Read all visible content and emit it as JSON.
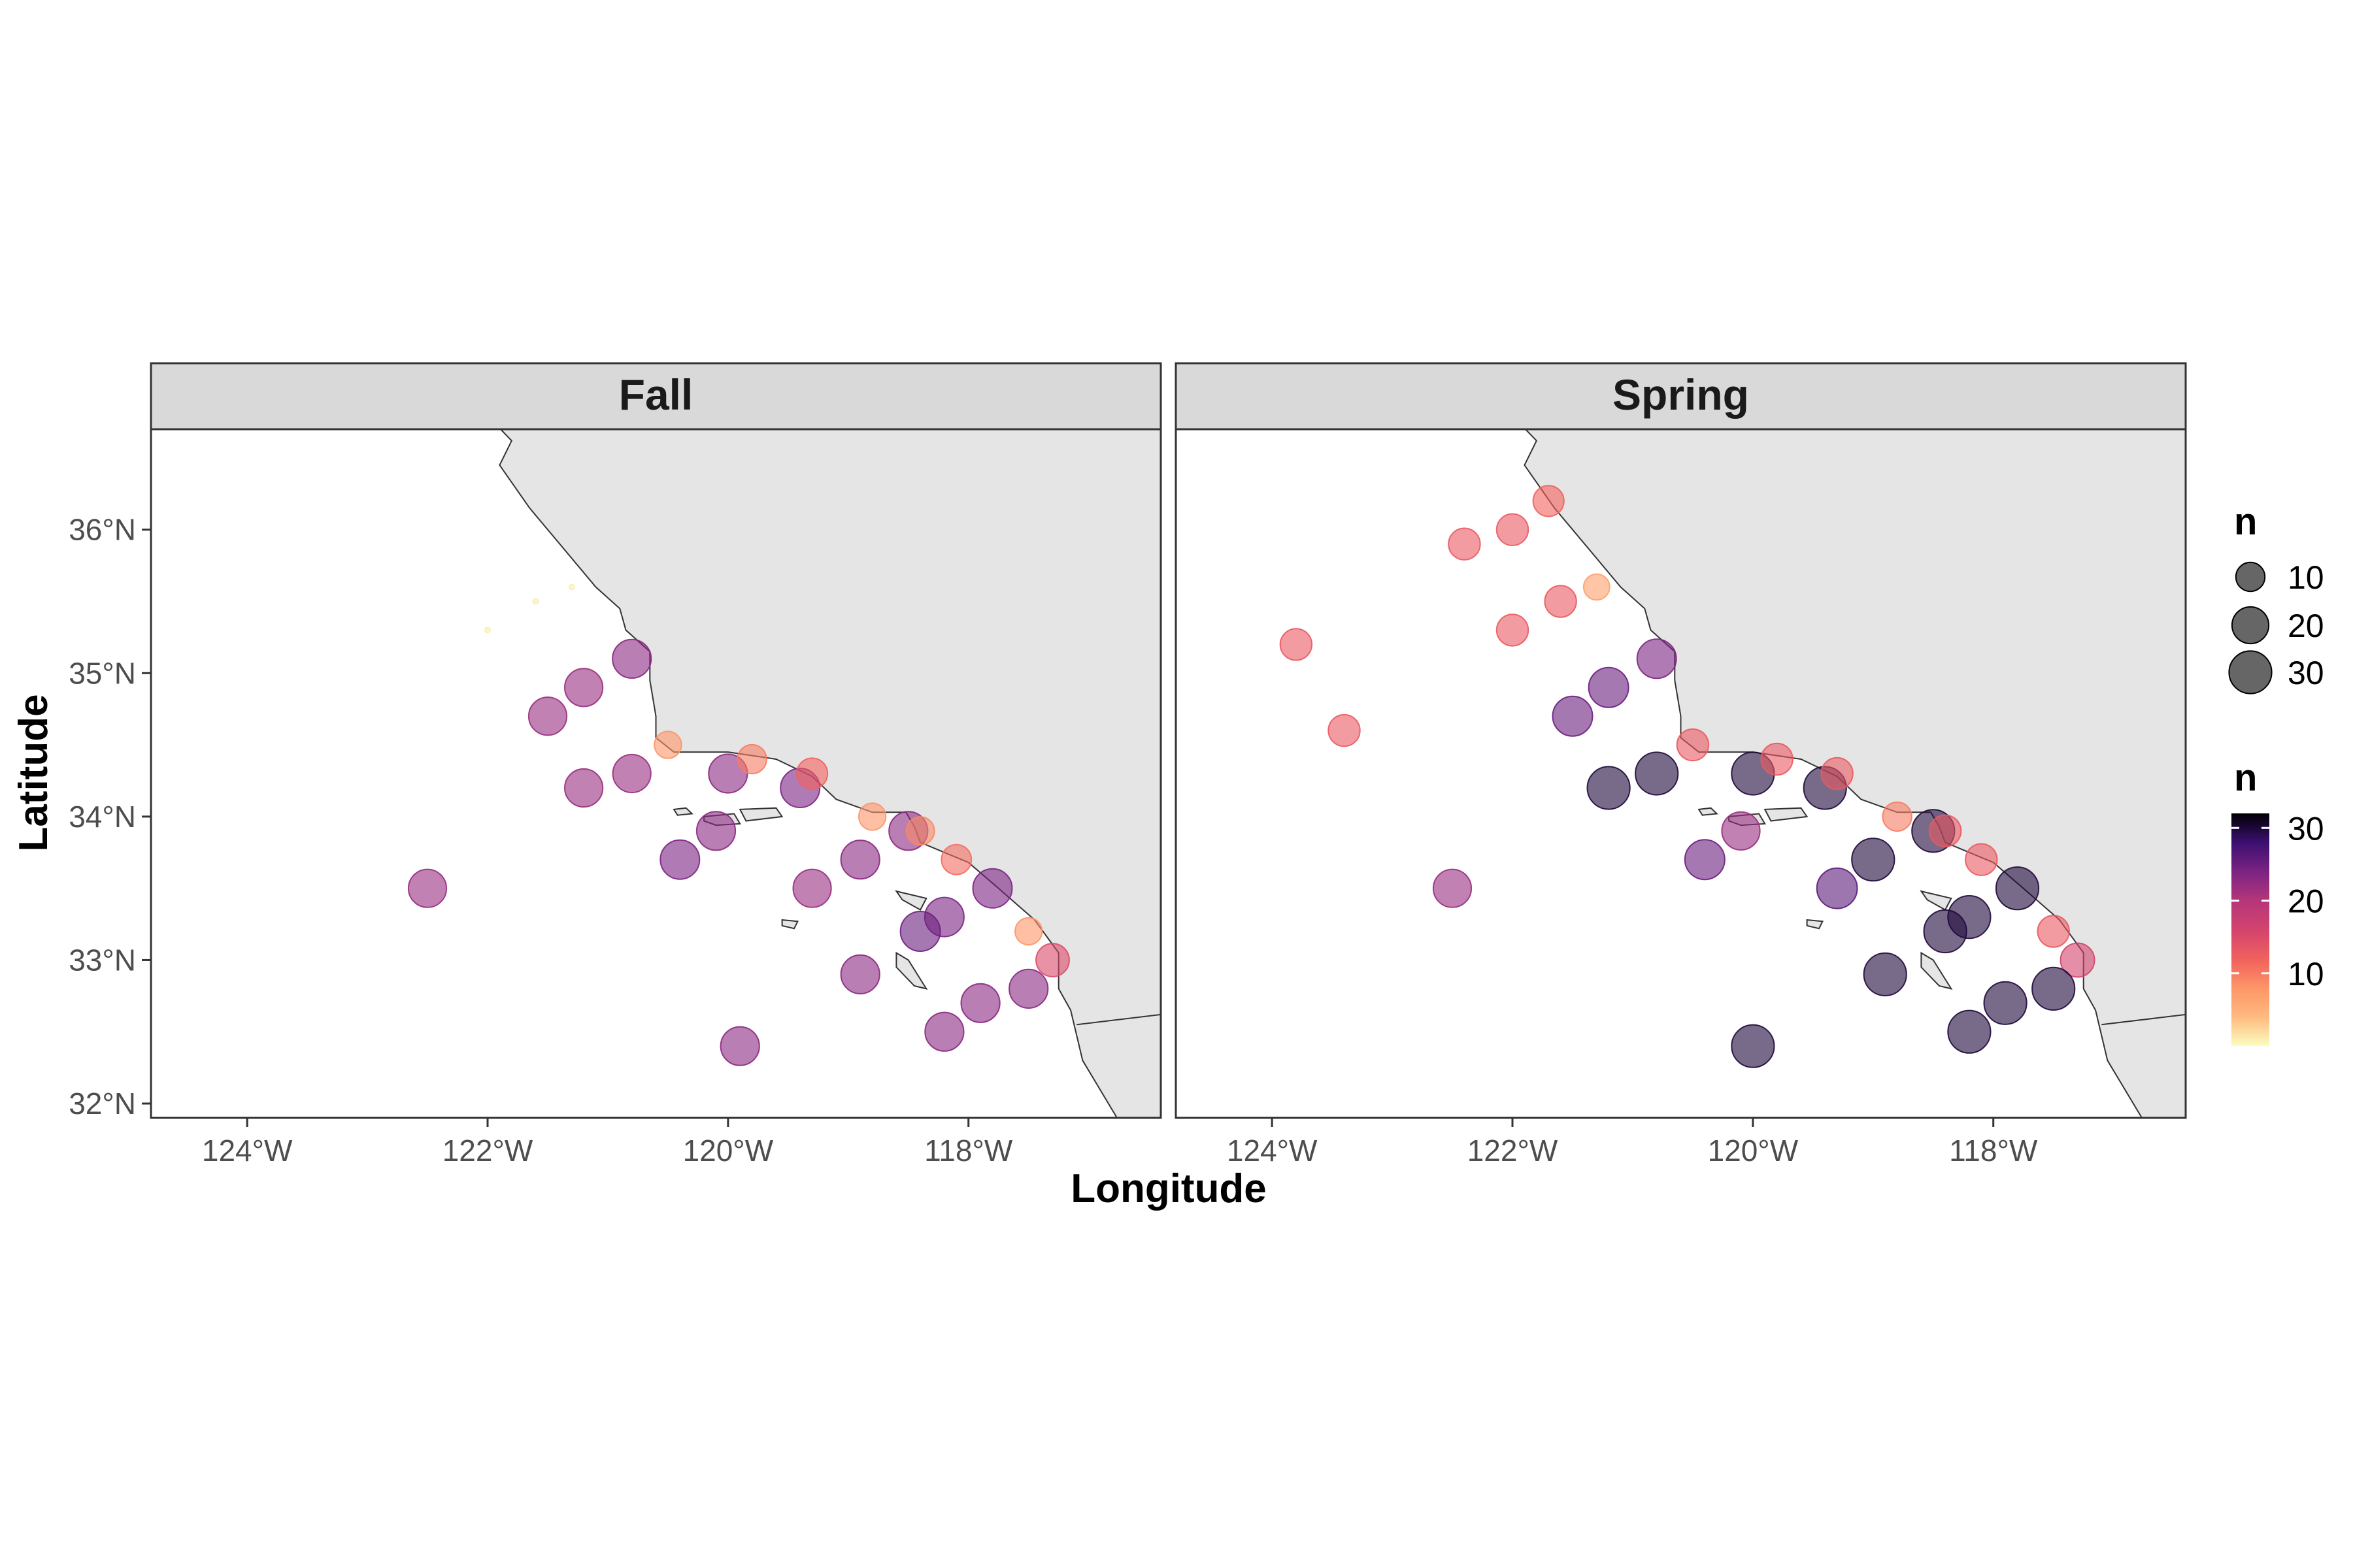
{
  "chart_data": {
    "type": "scatter",
    "xlabel": "Longitude",
    "ylabel": "Latitude",
    "xlim": [
      -124.8,
      -116.4
    ],
    "ylim": [
      31.9,
      36.7
    ],
    "x_ticks": [
      {
        "value": -124,
        "label": "124°W"
      },
      {
        "value": -122,
        "label": "122°W"
      },
      {
        "value": -120,
        "label": "120°W"
      },
      {
        "value": -118,
        "label": "118°W"
      }
    ],
    "y_ticks": [
      {
        "value": 36,
        "label": "36°N"
      },
      {
        "value": 35,
        "label": "35°N"
      },
      {
        "value": 34,
        "label": "34°N"
      },
      {
        "value": 33,
        "label": "33°N"
      },
      {
        "value": 32,
        "label": "32°N"
      }
    ],
    "land_color": "#e5e5e5",
    "point_alpha": 0.6,
    "color_scale": {
      "name": "magma (reversed)",
      "min": 0,
      "max": 32
    },
    "panels": [
      {
        "name": "Fall",
        "points": [
          {
            "lon": -122.5,
            "lat": 33.5,
            "n": 22
          },
          {
            "lon": -121.5,
            "lat": 34.7,
            "n": 22
          },
          {
            "lon": -121.2,
            "lat": 34.9,
            "n": 22
          },
          {
            "lon": -120.8,
            "lat": 35.1,
            "n": 23
          },
          {
            "lon": -121.2,
            "lat": 34.2,
            "n": 22
          },
          {
            "lon": -120.8,
            "lat": 34.3,
            "n": 22
          },
          {
            "lon": -120.5,
            "lat": 34.5,
            "n": 8
          },
          {
            "lon": -120.0,
            "lat": 34.3,
            "n": 23
          },
          {
            "lon": -119.8,
            "lat": 34.4,
            "n": 10
          },
          {
            "lon": -119.4,
            "lat": 34.2,
            "n": 24
          },
          {
            "lon": -119.3,
            "lat": 34.3,
            "n": 12
          },
          {
            "lon": -120.1,
            "lat": 33.9,
            "n": 23
          },
          {
            "lon": -120.4,
            "lat": 33.7,
            "n": 24
          },
          {
            "lon": -119.3,
            "lat": 33.5,
            "n": 22
          },
          {
            "lon": -118.9,
            "lat": 33.7,
            "n": 23
          },
          {
            "lon": -118.8,
            "lat": 34.0,
            "n": 8
          },
          {
            "lon": -118.5,
            "lat": 33.9,
            "n": 23
          },
          {
            "lon": -118.4,
            "lat": 33.9,
            "n": 9
          },
          {
            "lon": -118.1,
            "lat": 33.7,
            "n": 11
          },
          {
            "lon": -117.8,
            "lat": 33.5,
            "n": 24
          },
          {
            "lon": -118.2,
            "lat": 33.3,
            "n": 24
          },
          {
            "lon": -118.4,
            "lat": 33.2,
            "n": 25
          },
          {
            "lon": -117.5,
            "lat": 33.2,
            "n": 8
          },
          {
            "lon": -117.3,
            "lat": 33.0,
            "n": 15
          },
          {
            "lon": -118.9,
            "lat": 32.9,
            "n": 23
          },
          {
            "lon": -117.9,
            "lat": 32.7,
            "n": 23
          },
          {
            "lon": -117.5,
            "lat": 32.8,
            "n": 23
          },
          {
            "lon": -118.2,
            "lat": 32.5,
            "n": 23
          },
          {
            "lon": -119.9,
            "lat": 32.4,
            "n": 23
          },
          {
            "lon": -122.0,
            "lat": 35.3,
            "n": 1
          },
          {
            "lon": -121.6,
            "lat": 35.5,
            "n": 1
          },
          {
            "lon": -121.3,
            "lat": 35.6,
            "n": 1
          }
        ]
      },
      {
        "name": "Spring",
        "points": [
          {
            "lon": -123.8,
            "lat": 35.2,
            "n": 13
          },
          {
            "lon": -123.4,
            "lat": 34.6,
            "n": 13
          },
          {
            "lon": -122.4,
            "lat": 35.9,
            "n": 13
          },
          {
            "lon": -122.0,
            "lat": 36.0,
            "n": 13
          },
          {
            "lon": -121.7,
            "lat": 36.2,
            "n": 12
          },
          {
            "lon": -122.0,
            "lat": 35.3,
            "n": 13
          },
          {
            "lon": -121.6,
            "lat": 35.5,
            "n": 13
          },
          {
            "lon": -121.3,
            "lat": 35.6,
            "n": 7
          },
          {
            "lon": -120.8,
            "lat": 35.1,
            "n": 24
          },
          {
            "lon": -121.2,
            "lat": 34.9,
            "n": 25
          },
          {
            "lon": -121.5,
            "lat": 34.7,
            "n": 25
          },
          {
            "lon": -121.2,
            "lat": 34.2,
            "n": 30
          },
          {
            "lon": -120.8,
            "lat": 34.3,
            "n": 30
          },
          {
            "lon": -120.5,
            "lat": 34.5,
            "n": 13
          },
          {
            "lon": -120.0,
            "lat": 34.3,
            "n": 30
          },
          {
            "lon": -119.8,
            "lat": 34.4,
            "n": 13
          },
          {
            "lon": -119.4,
            "lat": 34.2,
            "n": 30
          },
          {
            "lon": -119.3,
            "lat": 34.3,
            "n": 13
          },
          {
            "lon": -120.1,
            "lat": 33.9,
            "n": 22
          },
          {
            "lon": -120.4,
            "lat": 33.7,
            "n": 25
          },
          {
            "lon": -122.5,
            "lat": 33.5,
            "n": 22
          },
          {
            "lon": -119.0,
            "lat": 33.7,
            "n": 30
          },
          {
            "lon": -119.3,
            "lat": 33.5,
            "n": 26
          },
          {
            "lon": -118.8,
            "lat": 34.0,
            "n": 10
          },
          {
            "lon": -118.5,
            "lat": 33.9,
            "n": 30
          },
          {
            "lon": -118.4,
            "lat": 33.9,
            "n": 13
          },
          {
            "lon": -118.1,
            "lat": 33.7,
            "n": 13
          },
          {
            "lon": -117.8,
            "lat": 33.5,
            "n": 30
          },
          {
            "lon": -118.2,
            "lat": 33.3,
            "n": 30
          },
          {
            "lon": -118.4,
            "lat": 33.2,
            "n": 30
          },
          {
            "lon": -117.5,
            "lat": 33.2,
            "n": 13
          },
          {
            "lon": -117.3,
            "lat": 33.0,
            "n": 16
          },
          {
            "lon": -118.9,
            "lat": 32.9,
            "n": 30
          },
          {
            "lon": -117.9,
            "lat": 32.7,
            "n": 30
          },
          {
            "lon": -117.5,
            "lat": 32.8,
            "n": 30
          },
          {
            "lon": -118.2,
            "lat": 32.5,
            "n": 30
          },
          {
            "lon": -120.0,
            "lat": 32.4,
            "n": 30
          }
        ]
      }
    ],
    "legend": {
      "placement": "right",
      "size_title": "n",
      "size_entries": [
        {
          "value": 10,
          "label": "10"
        },
        {
          "value": 20,
          "label": "20"
        },
        {
          "value": 30,
          "label": "30"
        }
      ],
      "color_title": "n",
      "color_ticks": [
        {
          "value": 10,
          "label": "10"
        },
        {
          "value": 20,
          "label": "20"
        },
        {
          "value": 30,
          "label": "30"
        }
      ]
    }
  }
}
